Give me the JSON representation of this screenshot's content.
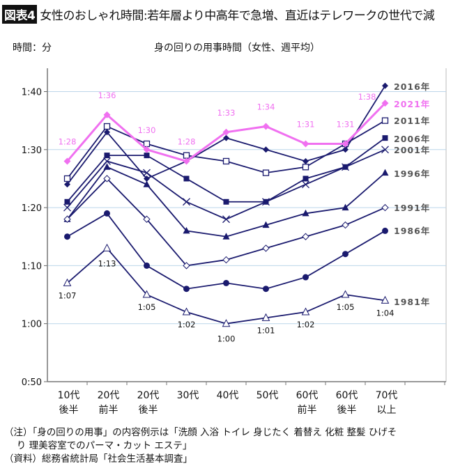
{
  "header": {
    "badge": "図表4",
    "title": "女性のおしゃれ時間:若年層より中高年で急増、直近はテレワークの世代で減"
  },
  "notes": {
    "line1": "（注）「身の回りの用事」の内容例示は「洗顔 入浴 トイレ 身じたく 着替え 化粧 整髪 ひげそ",
    "line2": "　 り 理美容室でのパーマ・カット エステ」",
    "line3": "（資料）総務省統計局「社会生活基本調査」"
  },
  "chart_data": {
    "type": "line",
    "title": "身の回りの用事時間（女性、週平均）",
    "ylabel": "時間：分",
    "ylim": [
      "0:50",
      "1:50"
    ],
    "yticks": [
      "0:50",
      "1:00",
      "1:10",
      "1:20",
      "1:30",
      "1:40"
    ],
    "grid": true,
    "legend": "right (labels at line ends)",
    "categories": [
      [
        "10代",
        "後半"
      ],
      [
        "20代",
        "前半"
      ],
      [
        "20代",
        "後半"
      ],
      [
        "30代",
        ""
      ],
      [
        "40代",
        ""
      ],
      [
        "50代",
        ""
      ],
      [
        "60代",
        "前半"
      ],
      [
        "60代",
        "後半"
      ],
      [
        "70代",
        "以上"
      ]
    ],
    "series": [
      {
        "name": "2016年",
        "marker": "filled-diamond",
        "color": "#1a1a6e",
        "values": [
          "1:24",
          "1:33",
          "1:25",
          "1:28",
          "1:32",
          "1:30",
          "1:28",
          "1:30",
          "1:41"
        ]
      },
      {
        "name": "2021年",
        "marker": "filled-diamond",
        "color": "#f070f0",
        "highlight": true,
        "values": [
          "1:28",
          "1:36",
          "1:30",
          "1:28",
          "1:33",
          "1:34",
          "1:31",
          "1:31",
          "1:38"
        ],
        "labels": [
          "1:28",
          "1:36",
          "1:30",
          "1:28",
          "1:33",
          "1:34",
          "1:31",
          "1:31",
          "1:38"
        ]
      },
      {
        "name": "2011年",
        "marker": "open-square",
        "color": "#1a1a6e",
        "values": [
          "1:25",
          "1:34",
          "1:31",
          "1:29",
          "1:28",
          "1:26",
          "1:27",
          "1:31",
          "1:35"
        ]
      },
      {
        "name": "2006年",
        "marker": "filled-square",
        "color": "#1a1a6e",
        "values": [
          "1:21",
          "1:29",
          "1:29",
          "1:25",
          "1:21",
          "1:21",
          "1:25",
          "1:27",
          "1:32"
        ]
      },
      {
        "name": "2001年",
        "marker": "cross",
        "color": "#1a1a6e",
        "values": [
          "1:20",
          "1:28",
          "1:26",
          "1:21",
          "1:18",
          "1:21",
          "1:24",
          "1:27",
          "1:30"
        ]
      },
      {
        "name": "1996年",
        "marker": "filled-triangle",
        "color": "#1a1a6e",
        "values": [
          "1:18",
          "1:27",
          "1:24",
          "1:16",
          "1:15",
          "1:17",
          "1:19",
          "1:20",
          "1:26"
        ]
      },
      {
        "name": "1991年",
        "marker": "open-diamond",
        "color": "#1a1a6e",
        "values": [
          "1:18",
          "1:25",
          "1:18",
          "1:10",
          "1:11",
          "1:13",
          "1:15",
          "1:17",
          "1:20"
        ]
      },
      {
        "name": "1986年",
        "marker": "filled-circle",
        "color": "#1a1a6e",
        "values": [
          "1:15",
          "1:19",
          "1:10",
          "1:06",
          "1:07",
          "1:06",
          "1:08",
          "1:12",
          "1:16"
        ]
      },
      {
        "name": "1981年",
        "marker": "open-triangle",
        "color": "#1a1a6e",
        "values": [
          "1:07",
          "1:13",
          "1:05",
          "1:02",
          "1:00",
          "1:01",
          "1:02",
          "1:05",
          "1:04"
        ],
        "labels": [
          "1:07",
          "1:13",
          "1:05",
          "1:02",
          "1:00",
          "1:01",
          "1:02",
          "1:05",
          "1:04"
        ]
      }
    ]
  }
}
